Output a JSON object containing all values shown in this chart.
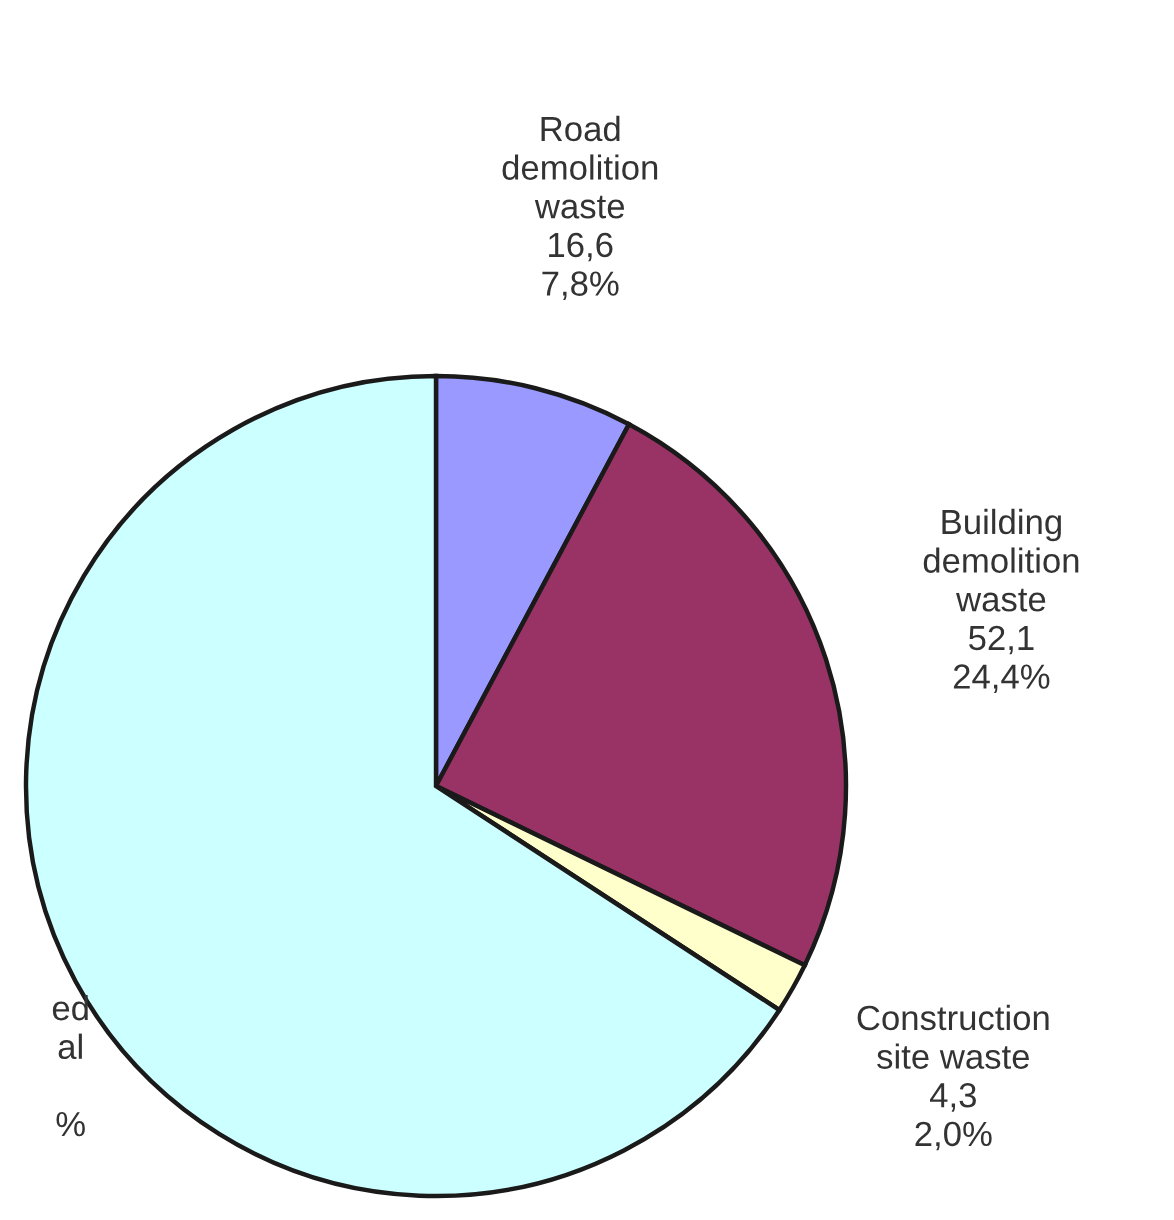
{
  "chart_data": {
    "type": "pie",
    "categories": [
      "Road\ndemolition\nwaste",
      "Building\ndemolition\nwaste",
      "Construction\nsite waste",
      "ed\nal"
    ],
    "values": [
      7.8,
      24.4,
      2.0,
      65.8
    ],
    "value_labels": [
      "16,6\n7,8%",
      "52,1\n24,4%",
      "4,3\n2,0%",
      "\n%"
    ],
    "colors": [
      "#9999ff",
      "#993366",
      "#ffffcc",
      "#ccffff"
    ]
  }
}
